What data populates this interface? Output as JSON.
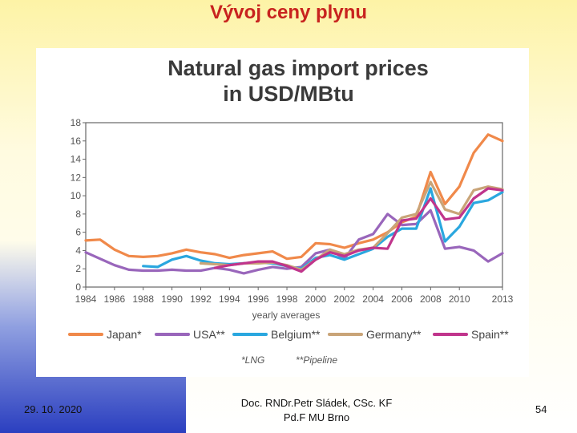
{
  "slide": {
    "title": "Vývoj ceny plynu",
    "footer_date": "29. 10. 2020",
    "footer_author_line1": "Doc. RNDr.Petr Sládek, CSc. KF",
    "footer_author_line2": "Pd.F MU Brno",
    "page_number": "54"
  },
  "chart_data": {
    "type": "line",
    "title_line1": "Natural gas import prices",
    "title_line2": "in USD/MBtu",
    "xlabel": "yearly averages",
    "footnote_lng": "*LNG",
    "footnote_pipeline": "**Pipeline",
    "x_ticks": [
      1984,
      1986,
      1988,
      1990,
      1992,
      1994,
      1996,
      1998,
      2000,
      2002,
      2004,
      2006,
      2008,
      2010,
      2013
    ],
    "y_ticks": [
      0,
      2,
      4,
      6,
      8,
      10,
      12,
      14,
      16,
      18
    ],
    "xlim": [
      1984,
      2013
    ],
    "ylim": [
      0,
      18
    ],
    "grid": false,
    "legend_position": "bottom",
    "series": [
      {
        "name": "Japan*",
        "color": "#f0894a",
        "points": [
          [
            1984,
            5.1
          ],
          [
            1985,
            5.2
          ],
          [
            1986,
            4.1
          ],
          [
            1987,
            3.4
          ],
          [
            1988,
            3.3
          ],
          [
            1989,
            3.4
          ],
          [
            1990,
            3.7
          ],
          [
            1991,
            4.1
          ],
          [
            1992,
            3.8
          ],
          [
            1993,
            3.6
          ],
          [
            1994,
            3.2
          ],
          [
            1995,
            3.5
          ],
          [
            1996,
            3.7
          ],
          [
            1997,
            3.9
          ],
          [
            1998,
            3.1
          ],
          [
            1999,
            3.3
          ],
          [
            2000,
            4.8
          ],
          [
            2001,
            4.7
          ],
          [
            2002,
            4.3
          ],
          [
            2003,
            4.8
          ],
          [
            2004,
            5.2
          ],
          [
            2005,
            6.0
          ],
          [
            2006,
            7.1
          ],
          [
            2007,
            7.7
          ],
          [
            2008,
            12.6
          ],
          [
            2009,
            9.1
          ],
          [
            2010,
            11.0
          ],
          [
            2011,
            14.7
          ],
          [
            2012,
            16.7
          ],
          [
            2013,
            16.0
          ]
        ]
      },
      {
        "name": "USA**",
        "color": "#9966bb",
        "points": [
          [
            1984,
            3.8
          ],
          [
            1985,
            3.1
          ],
          [
            1986,
            2.4
          ],
          [
            1987,
            1.9
          ],
          [
            1988,
            1.8
          ],
          [
            1989,
            1.8
          ],
          [
            1990,
            1.9
          ],
          [
            1991,
            1.8
          ],
          [
            1992,
            1.8
          ],
          [
            1993,
            2.1
          ],
          [
            1994,
            1.9
          ],
          [
            1995,
            1.5
          ],
          [
            1996,
            1.9
          ],
          [
            1997,
            2.2
          ],
          [
            1998,
            2.0
          ],
          [
            1999,
            2.2
          ],
          [
            2000,
            3.7
          ],
          [
            2001,
            4.1
          ],
          [
            2002,
            3.1
          ],
          [
            2003,
            5.2
          ],
          [
            2004,
            5.8
          ],
          [
            2005,
            8.0
          ],
          [
            2006,
            6.8
          ],
          [
            2007,
            6.9
          ],
          [
            2008,
            8.4
          ],
          [
            2009,
            4.2
          ],
          [
            2010,
            4.4
          ],
          [
            2011,
            4.0
          ],
          [
            2012,
            2.8
          ],
          [
            2013,
            3.7
          ]
        ]
      },
      {
        "name": "Belgium**",
        "color": "#2aa7df",
        "points": [
          [
            1988,
            2.3
          ],
          [
            1989,
            2.2
          ],
          [
            1990,
            3.0
          ],
          [
            1991,
            3.4
          ],
          [
            1992,
            2.9
          ],
          [
            1993,
            2.6
          ],
          [
            1994,
            2.5
          ],
          [
            1995,
            2.6
          ],
          [
            1996,
            2.7
          ],
          [
            1997,
            2.6
          ],
          [
            1998,
            2.3
          ],
          [
            1999,
            2.0
          ],
          [
            2000,
            3.2
          ],
          [
            2001,
            3.5
          ],
          [
            2002,
            3.0
          ],
          [
            2003,
            3.6
          ],
          [
            2004,
            4.2
          ],
          [
            2005,
            5.5
          ],
          [
            2006,
            6.4
          ],
          [
            2007,
            6.4
          ],
          [
            2008,
            10.8
          ],
          [
            2009,
            5.0
          ],
          [
            2010,
            6.6
          ],
          [
            2011,
            9.2
          ],
          [
            2012,
            9.5
          ],
          [
            2013,
            10.4
          ]
        ]
      },
      {
        "name": "Germany**",
        "color": "#c9a478",
        "points": [
          [
            1992,
            2.6
          ],
          [
            1993,
            2.5
          ],
          [
            1994,
            2.4
          ],
          [
            1995,
            2.6
          ],
          [
            1996,
            2.6
          ],
          [
            1997,
            2.7
          ],
          [
            1998,
            2.4
          ],
          [
            1999,
            1.9
          ],
          [
            2000,
            3.0
          ],
          [
            2001,
            4.1
          ],
          [
            2002,
            3.6
          ],
          [
            2003,
            4.1
          ],
          [
            2004,
            4.3
          ],
          [
            2005,
            5.9
          ],
          [
            2006,
            7.6
          ],
          [
            2007,
            8.0
          ],
          [
            2008,
            11.5
          ],
          [
            2009,
            8.5
          ],
          [
            2010,
            8.0
          ],
          [
            2011,
            10.6
          ],
          [
            2012,
            11.0
          ],
          [
            2013,
            10.7
          ]
        ]
      },
      {
        "name": "Spain**",
        "color": "#c0358c",
        "points": [
          [
            1993,
            2.1
          ],
          [
            1994,
            2.4
          ],
          [
            1995,
            2.6
          ],
          [
            1996,
            2.8
          ],
          [
            1997,
            2.8
          ],
          [
            1998,
            2.3
          ],
          [
            1999,
            1.7
          ],
          [
            2000,
            3.0
          ],
          [
            2001,
            3.8
          ],
          [
            2002,
            3.4
          ],
          [
            2003,
            4.0
          ],
          [
            2004,
            4.3
          ],
          [
            2005,
            4.2
          ],
          [
            2006,
            7.3
          ],
          [
            2007,
            7.5
          ],
          [
            2008,
            9.7
          ],
          [
            2009,
            7.4
          ],
          [
            2010,
            7.6
          ],
          [
            2011,
            9.7
          ],
          [
            2012,
            10.8
          ],
          [
            2013,
            10.6
          ]
        ]
      }
    ]
  }
}
